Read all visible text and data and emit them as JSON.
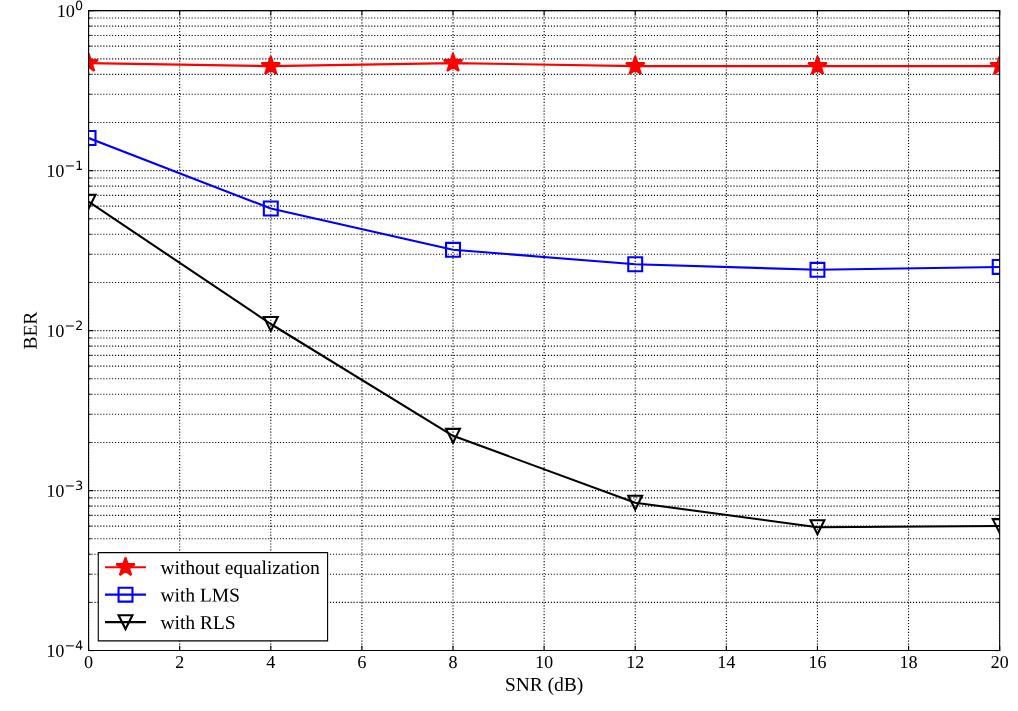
{
  "chart_data": {
    "type": "line",
    "xlabel": "SNR (dB)",
    "ylabel": "BER",
    "x": [
      0,
      4,
      8,
      12,
      16,
      20
    ],
    "series": [
      {
        "name": "without equalization",
        "color": "#ff0000",
        "marker": "star",
        "values": [
          0.47,
          0.45,
          0.47,
          0.45,
          0.45,
          0.45
        ]
      },
      {
        "name": "with LMS",
        "color": "#0000ff",
        "marker": "square",
        "values": [
          0.16,
          0.058,
          0.032,
          0.026,
          0.024,
          0.025
        ]
      },
      {
        "name": "with RLS",
        "color": "#000000",
        "marker": "triangle",
        "values": [
          0.064,
          0.011,
          0.0022,
          0.00084,
          0.00059,
          0.0006
        ]
      }
    ],
    "log": "y",
    "xlim": [
      0,
      20
    ],
    "xticks": [
      0,
      2,
      4,
      6,
      8,
      10,
      12,
      14,
      16,
      18,
      20
    ],
    "ylim": [
      0.0001,
      1
    ],
    "yticks": [
      {
        "value": 0.0001,
        "label": "10$^{−4}$"
      },
      {
        "value": 0.001,
        "label": "10$^{−3}$"
      },
      {
        "value": 0.01,
        "label": "10$^{−2}$"
      },
      {
        "value": 0.1,
        "label": "10$^{−1}$"
      },
      {
        "value": 1,
        "label": "10$^{0}$"
      }
    ],
    "grid": true,
    "legend": "bottom left",
    "line_style": "solid"
  }
}
